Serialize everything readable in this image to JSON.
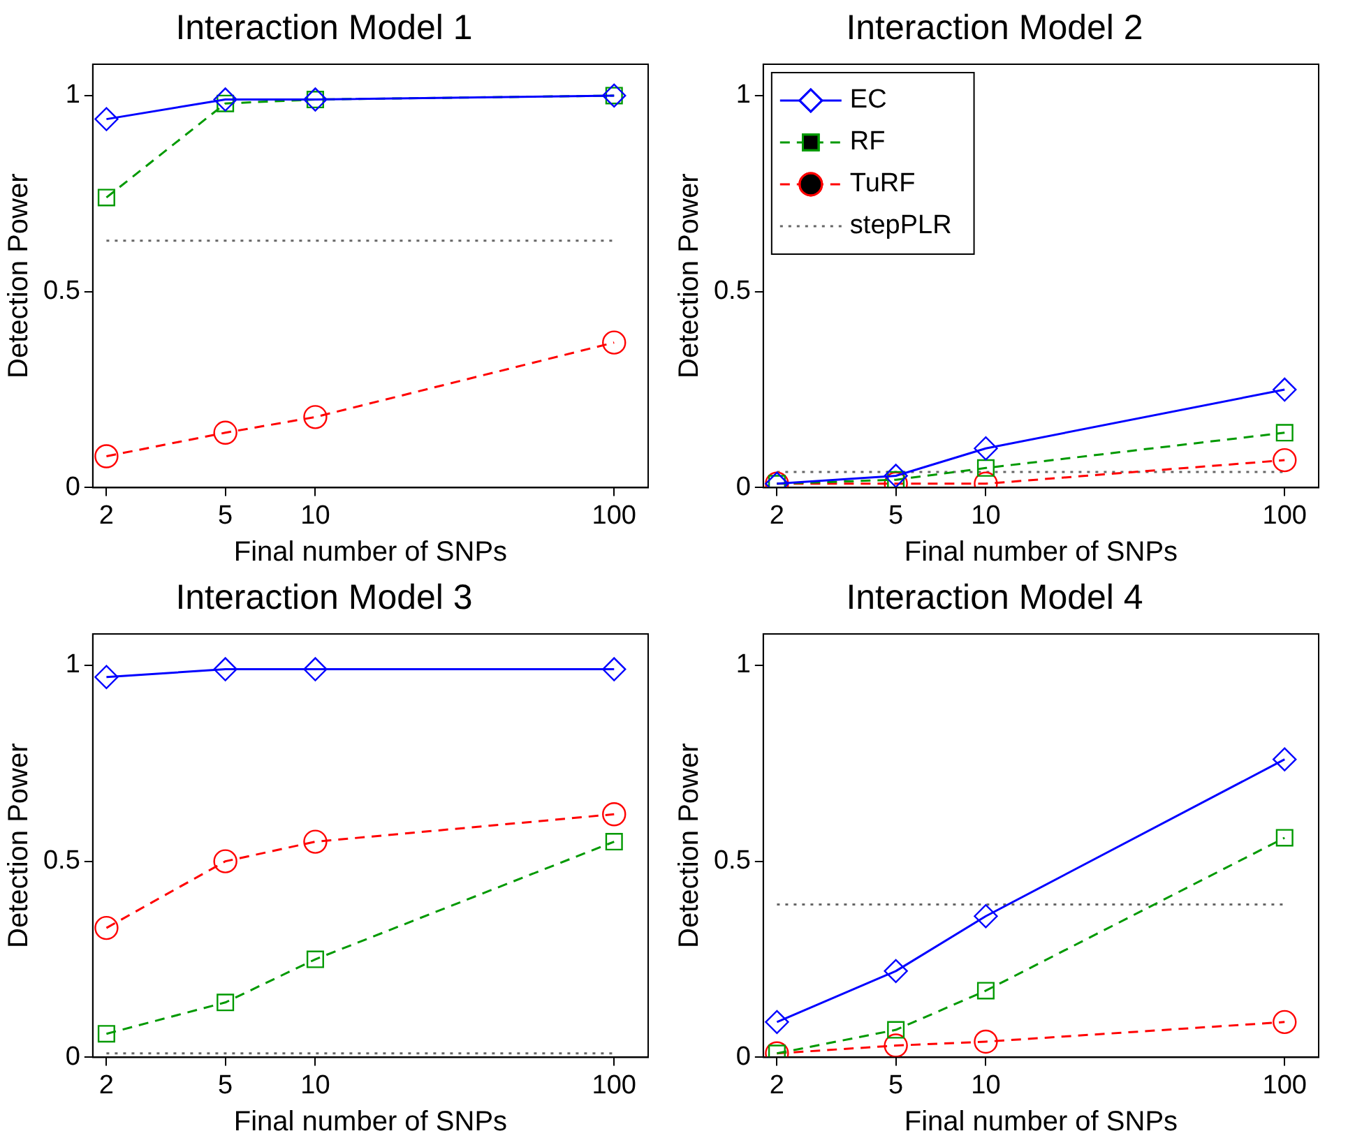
{
  "chart_data": [
    {
      "type": "line",
      "title": "Interaction Model 1",
      "xlabel": "Final number of SNPs",
      "ylabel": "Detection Power",
      "log": "x",
      "xlim": [
        1.8,
        130
      ],
      "xticks": [
        2,
        5,
        10,
        100
      ],
      "ylim": [
        0,
        1.08
      ],
      "yticks": [
        0,
        0.5,
        1
      ],
      "grid": false,
      "legend": false,
      "series": [
        {
          "color": "#0000ff",
          "x": [
            2,
            5,
            10,
            100
          ],
          "values": [
            0.94,
            0.99,
            0.99,
            1.0
          ],
          "marker": "diamond",
          "line_style": "solid"
        },
        {
          "color": "#009900",
          "x": [
            2,
            5,
            10,
            100
          ],
          "values": [
            0.74,
            0.98,
            0.99,
            1.0
          ],
          "marker": "square",
          "line_style": "dashed"
        },
        {
          "color": "#ff0000",
          "x": [
            2,
            5,
            10,
            100
          ],
          "values": [
            0.08,
            0.14,
            0.18,
            0.37
          ],
          "marker": "circle",
          "line_style": "dashed"
        },
        {
          "color": "#666666",
          "x": [
            2,
            100
          ],
          "values": [
            0.63,
            0.63
          ],
          "marker": "none",
          "line_style": "dotted"
        }
      ]
    },
    {
      "type": "line",
      "title": "Interaction Model 2",
      "xlabel": "Final number of SNPs",
      "ylabel": "Detection Power",
      "log": "x",
      "xlim": [
        1.8,
        130
      ],
      "xticks": [
        2,
        5,
        10,
        100
      ],
      "ylim": [
        0,
        1.08
      ],
      "yticks": [
        0,
        0.5,
        1
      ],
      "grid": false,
      "legend": "top left",
      "series": [
        {
          "name": "EC",
          "color": "#0000ff",
          "x": [
            2,
            5,
            10,
            100
          ],
          "values": [
            0.01,
            0.03,
            0.1,
            0.25
          ],
          "marker": "diamond",
          "line_style": "solid"
        },
        {
          "name": "RF",
          "color": "#009900",
          "x": [
            2,
            5,
            10,
            100
          ],
          "values": [
            0.01,
            0.02,
            0.05,
            0.14
          ],
          "marker": "square",
          "line_style": "dashed"
        },
        {
          "name": "TuRF",
          "color": "#ff0000",
          "x": [
            2,
            5,
            10,
            100
          ],
          "values": [
            0.01,
            0.01,
            0.01,
            0.07
          ],
          "marker": "circle",
          "line_style": "dashed"
        },
        {
          "name": "stepPLR",
          "color": "#666666",
          "x": [
            2,
            100
          ],
          "values": [
            0.04,
            0.04
          ],
          "marker": "none",
          "line_style": "dotted"
        }
      ]
    },
    {
      "type": "line",
      "title": "Interaction Model 3",
      "xlabel": "Final number of SNPs",
      "ylabel": "Detection Power",
      "log": "x",
      "xlim": [
        1.8,
        130
      ],
      "xticks": [
        2,
        5,
        10,
        100
      ],
      "ylim": [
        0,
        1.08
      ],
      "yticks": [
        0,
        0.5,
        1
      ],
      "grid": false,
      "legend": false,
      "series": [
        {
          "color": "#0000ff",
          "x": [
            2,
            5,
            10,
            100
          ],
          "values": [
            0.97,
            0.99,
            0.99,
            0.99
          ],
          "marker": "diamond",
          "line_style": "solid"
        },
        {
          "color": "#009900",
          "x": [
            2,
            5,
            10,
            100
          ],
          "values": [
            0.06,
            0.14,
            0.25,
            0.55
          ],
          "marker": "square",
          "line_style": "dashed"
        },
        {
          "color": "#ff0000",
          "x": [
            2,
            5,
            10,
            100
          ],
          "values": [
            0.33,
            0.5,
            0.55,
            0.62
          ],
          "marker": "circle",
          "line_style": "dashed"
        },
        {
          "color": "#666666",
          "x": [
            2,
            100
          ],
          "values": [
            0.01,
            0.01
          ],
          "marker": "none",
          "line_style": "dotted"
        }
      ]
    },
    {
      "type": "line",
      "title": "Interaction Model 4",
      "xlabel": "Final number of SNPs",
      "ylabel": "Detection Power",
      "log": "x",
      "xlim": [
        1.8,
        130
      ],
      "xticks": [
        2,
        5,
        10,
        100
      ],
      "ylim": [
        0,
        1.08
      ],
      "yticks": [
        0,
        0.5,
        1
      ],
      "grid": false,
      "legend": false,
      "series": [
        {
          "color": "#0000ff",
          "x": [
            2,
            5,
            10,
            100
          ],
          "values": [
            0.09,
            0.22,
            0.36,
            0.76
          ],
          "marker": "diamond",
          "line_style": "solid"
        },
        {
          "color": "#009900",
          "x": [
            2,
            5,
            10,
            100
          ],
          "values": [
            0.01,
            0.07,
            0.17,
            0.56
          ],
          "marker": "square",
          "line_style": "dashed"
        },
        {
          "color": "#ff0000",
          "x": [
            2,
            5,
            10,
            100
          ],
          "values": [
            0.01,
            0.03,
            0.04,
            0.09
          ],
          "marker": "circle",
          "line_style": "dashed"
        },
        {
          "color": "#666666",
          "x": [
            2,
            100
          ],
          "values": [
            0.39,
            0.39
          ],
          "marker": "none",
          "line_style": "dotted"
        }
      ]
    }
  ]
}
